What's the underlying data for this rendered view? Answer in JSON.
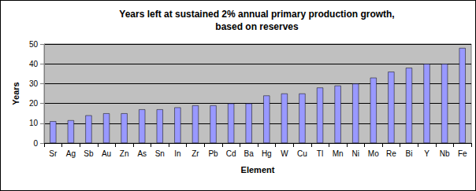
{
  "chart_data": {
    "type": "bar",
    "title": "Years left at sustained 2% annual primary production growth,\nbased on reserves",
    "x_label": "Element",
    "y_label": "Years",
    "categories": [
      "Sr",
      "Ag",
      "Sb",
      "Au",
      "Zn",
      "As",
      "Sn",
      "In",
      "Zr",
      "Pb",
      "Cd",
      "Ba",
      "Hg",
      "W",
      "Cu",
      "Tl",
      "Mn",
      "Ni",
      "Mo",
      "Re",
      "Bi",
      "Y",
      "Nb",
      "Fe"
    ],
    "values": [
      11,
      11.5,
      14,
      15,
      15,
      17,
      17,
      18,
      19,
      19,
      20,
      20,
      24,
      25,
      25,
      28,
      29,
      30,
      33,
      36,
      38,
      40,
      40,
      48
    ],
    "color": "#9999ff",
    "ylim": [
      0,
      50
    ],
    "yticks": [
      0,
      10,
      20,
      30,
      40,
      50
    ],
    "grid": true
  }
}
